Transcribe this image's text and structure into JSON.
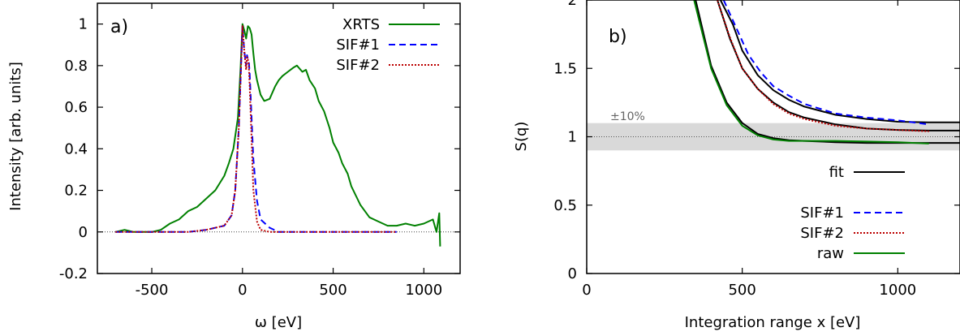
{
  "chart_data": [
    {
      "type": "line",
      "panel_label": "a)",
      "xlabel": "ω [eV]",
      "ylabel": "Intensity [arb. units]",
      "xlim": [
        -800,
        1200
      ],
      "ylim": [
        -0.2,
        1.1
      ],
      "xticks": [
        -500,
        0,
        500,
        1000
      ],
      "xtick_labels": [
        "-500",
        "0",
        "500",
        "1000"
      ],
      "yticks": [
        -0.2,
        0,
        0.2,
        0.4,
        0.6,
        0.8,
        1.0
      ],
      "ytick_labels": [
        "-0.2",
        "0",
        "0.2",
        "0.4",
        "0.6",
        "0.8",
        "1"
      ],
      "legend_position": "top-right",
      "grid": false,
      "zero_line": true,
      "series": [
        {
          "name": "XRTS",
          "color": "#008000",
          "dash": "solid",
          "x": [
            -700,
            -650,
            -600,
            -550,
            -500,
            -450,
            -400,
            -350,
            -300,
            -250,
            -200,
            -150,
            -100,
            -75,
            -50,
            -25,
            -10,
            0,
            10,
            20,
            30,
            40,
            50,
            60,
            70,
            80,
            100,
            120,
            150,
            180,
            200,
            220,
            250,
            280,
            300,
            330,
            350,
            370,
            400,
            420,
            450,
            480,
            500,
            530,
            550,
            580,
            600,
            650,
            700,
            750,
            800,
            850,
            900,
            950,
            1000,
            1050,
            1070,
            1085,
            1090
          ],
          "y": [
            0.0,
            0.01,
            0.0,
            0.0,
            0.0,
            0.01,
            0.04,
            0.06,
            0.1,
            0.12,
            0.16,
            0.2,
            0.27,
            0.33,
            0.4,
            0.55,
            0.8,
            1.0,
            0.97,
            0.93,
            0.99,
            0.98,
            0.95,
            0.86,
            0.78,
            0.73,
            0.66,
            0.63,
            0.64,
            0.7,
            0.73,
            0.75,
            0.77,
            0.79,
            0.8,
            0.77,
            0.78,
            0.73,
            0.69,
            0.63,
            0.58,
            0.5,
            0.43,
            0.38,
            0.33,
            0.28,
            0.22,
            0.13,
            0.07,
            0.05,
            0.03,
            0.03,
            0.04,
            0.03,
            0.04,
            0.06,
            0.0,
            0.09,
            -0.07
          ]
        },
        {
          "name": "SIF#1",
          "color": "#0000ff",
          "dash": "dashed",
          "x": [
            -700,
            -300,
            -200,
            -100,
            -60,
            -40,
            -20,
            0,
            10,
            20,
            25,
            30,
            35,
            40,
            50,
            60,
            80,
            100,
            150,
            200,
            850
          ],
          "y": [
            0.0,
            0.0,
            0.01,
            0.03,
            0.08,
            0.2,
            0.5,
            0.99,
            0.87,
            0.8,
            0.85,
            0.83,
            0.82,
            0.76,
            0.55,
            0.35,
            0.15,
            0.06,
            0.02,
            0.0,
            0.0
          ]
        },
        {
          "name": "SIF#2",
          "color": "#bb0000",
          "dash": "dotted",
          "x": [
            -700,
            -300,
            -200,
            -100,
            -60,
            -40,
            -20,
            0,
            10,
            20,
            25,
            30,
            35,
            40,
            50,
            60,
            80,
            100,
            150,
            850
          ],
          "y": [
            0.0,
            0.0,
            0.01,
            0.03,
            0.08,
            0.2,
            0.5,
            0.99,
            0.87,
            0.78,
            0.84,
            0.83,
            0.8,
            0.7,
            0.45,
            0.2,
            0.05,
            0.01,
            0.0,
            0.0
          ]
        }
      ]
    },
    {
      "type": "line",
      "panel_label": "b)",
      "xlabel": "Integration range x [eV]",
      "ylabel": "S(q)",
      "xlim": [
        0,
        1200
      ],
      "ylim": [
        0,
        2
      ],
      "xticks": [
        0,
        500,
        1000
      ],
      "xtick_labels": [
        "0",
        "500",
        "1000"
      ],
      "yticks": [
        0,
        0.5,
        1.0,
        1.5,
        2.0
      ],
      "ytick_labels": [
        "0",
        "0.5",
        "1",
        "1.5",
        "2"
      ],
      "band": {
        "y_low": 0.9,
        "y_high": 1.1,
        "label": "±10%",
        "color": "#d9d9d9"
      },
      "reference_line": 1.0,
      "legend_position": "bottom-right",
      "grid": false,
      "series": [
        {
          "name": "fit",
          "color": "#000000",
          "dash": "solid",
          "curves": [
            {
              "x": [
                350,
                400,
                450,
                500,
                550,
                600,
                650,
                700,
                800,
                900,
                1000,
                1100,
                1200
              ],
              "y": [
                2.0,
                1.52,
                1.25,
                1.1,
                1.02,
                0.99,
                0.975,
                0.97,
                0.96,
                0.955,
                0.955,
                0.955,
                0.955
              ]
            },
            {
              "x": [
                420,
                460,
                500,
                550,
                600,
                650,
                700,
                800,
                900,
                1000,
                1100,
                1200
              ],
              "y": [
                2.0,
                1.72,
                1.5,
                1.35,
                1.25,
                1.18,
                1.14,
                1.09,
                1.06,
                1.05,
                1.045,
                1.045
              ]
            },
            {
              "x": [
                430,
                470,
                500,
                550,
                600,
                650,
                700,
                800,
                900,
                1000,
                1100,
                1200
              ],
              "y": [
                2.0,
                1.82,
                1.63,
                1.45,
                1.34,
                1.27,
                1.22,
                1.16,
                1.13,
                1.11,
                1.105,
                1.105
              ]
            }
          ]
        },
        {
          "name": "SIF#1",
          "color": "#0000ff",
          "dash": "dashed",
          "curves": [
            {
              "x": [
                440,
                480,
                520,
                560,
                600,
                650,
                700,
                800,
                900,
                1000,
                1100
              ],
              "y": [
                2.0,
                1.8,
                1.6,
                1.47,
                1.37,
                1.3,
                1.24,
                1.17,
                1.14,
                1.12,
                1.09
              ]
            }
          ]
        },
        {
          "name": "SIF#2",
          "color": "#bb0000",
          "dash": "dotted",
          "curves": [
            {
              "x": [
                420,
                460,
                500,
                550,
                600,
                650,
                700,
                800,
                900,
                1000,
                1100
              ],
              "y": [
                2.0,
                1.73,
                1.5,
                1.35,
                1.24,
                1.17,
                1.13,
                1.08,
                1.06,
                1.05,
                1.04
              ]
            }
          ]
        },
        {
          "name": "raw",
          "color": "#008000",
          "dash": "solid",
          "curves": [
            {
              "x": [
                345,
                400,
                450,
                500,
                550,
                600,
                650,
                700,
                800,
                900,
                1000,
                1100
              ],
              "y": [
                2.0,
                1.5,
                1.23,
                1.08,
                1.01,
                0.98,
                0.97,
                0.97,
                0.97,
                0.965,
                0.96,
                0.95
              ]
            }
          ]
        }
      ]
    }
  ]
}
